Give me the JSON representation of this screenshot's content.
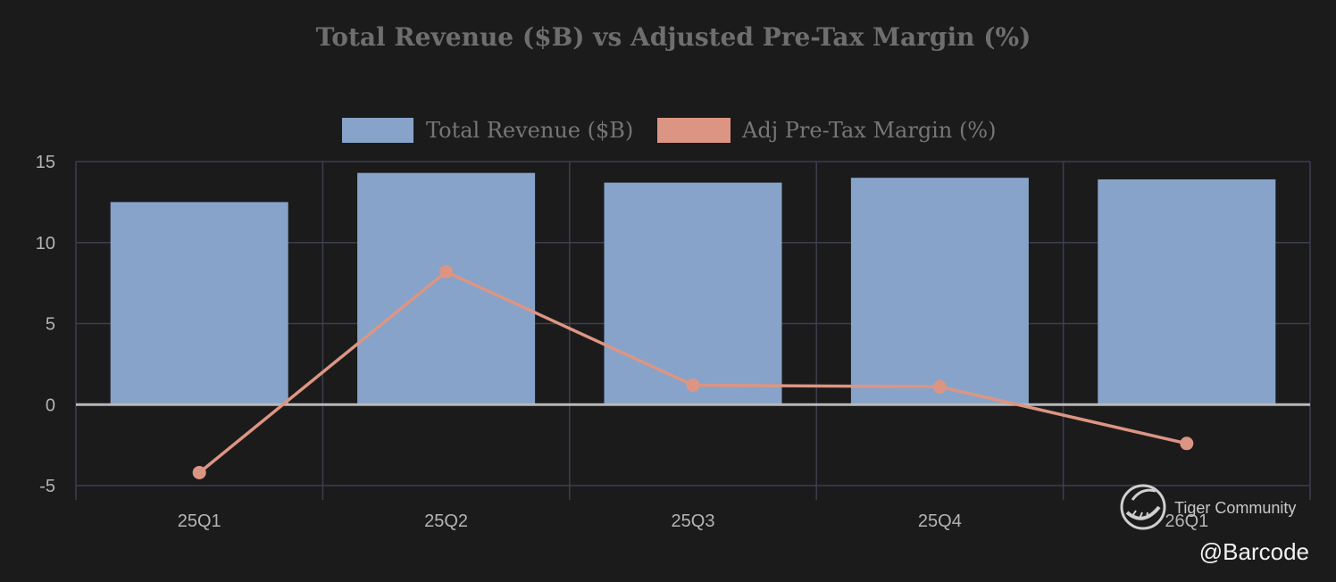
{
  "chart_data": {
    "type": "bar",
    "title": "Total Revenue ($B) vs Adjusted Pre-Tax Margin (%)",
    "categories": [
      "25Q1",
      "25Q2",
      "25Q3",
      "25Q4",
      "26Q1"
    ],
    "series": [
      {
        "name": "Total Revenue ($B)",
        "type": "bar",
        "color": "#87a3c9",
        "values": [
          12.5,
          14.3,
          13.7,
          14.0,
          13.9
        ]
      },
      {
        "name": "Adj Pre-Tax Margin (%)",
        "type": "line",
        "color": "#dd9583",
        "values": [
          -4.2,
          8.2,
          1.2,
          1.1,
          -2.4
        ]
      }
    ],
    "y_ticks": [
      15,
      10,
      5,
      0,
      -5
    ],
    "ylim": [
      -5,
      15
    ],
    "xlabel": "",
    "ylabel": "",
    "grid": true,
    "legend_position": "top-center"
  },
  "watermark": {
    "brand": "Tiger Community",
    "handle": "@Barcode"
  },
  "colors": {
    "background": "#1b1b1c",
    "grid": "#3c3e4e",
    "zero_line": "#b9b9b9"
  }
}
